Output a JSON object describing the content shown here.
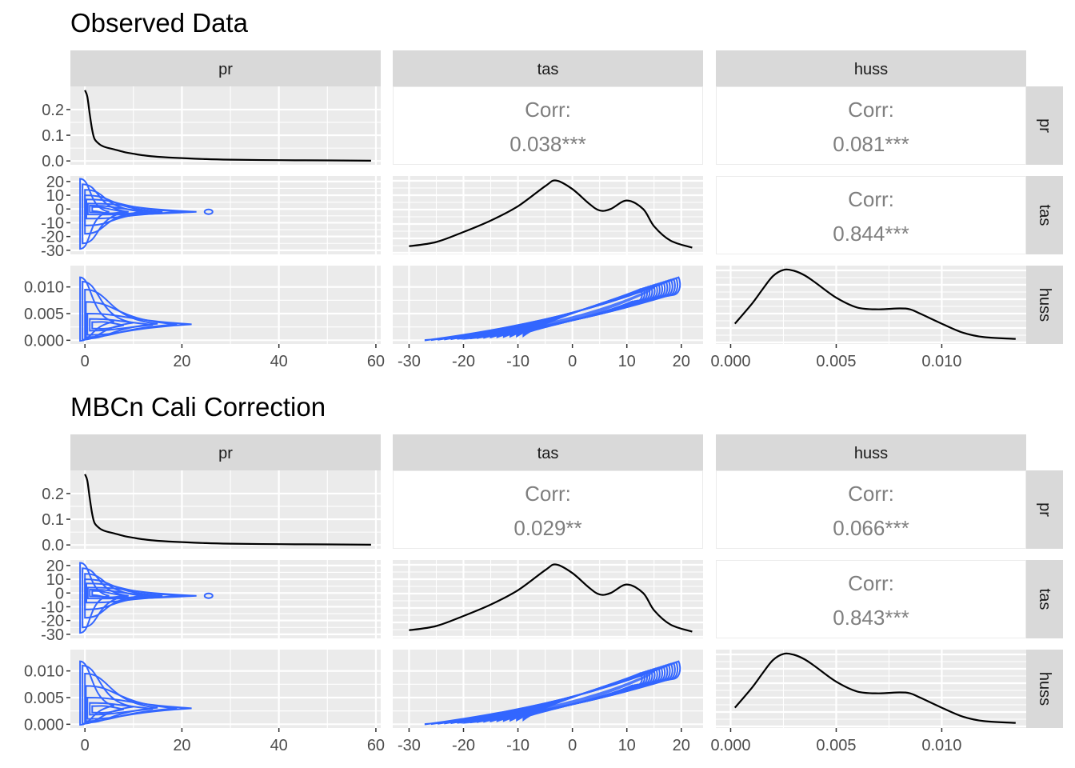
{
  "chart_data": [
    {
      "type": "scatterplot-matrix",
      "title": "Observed Data",
      "variables": [
        "pr",
        "tas",
        "huss"
      ],
      "correlations": {
        "tas_pr": {
          "label": "Corr:",
          "value": "0.038***"
        },
        "huss_pr": {
          "label": "Corr:",
          "value": "0.081***"
        },
        "huss_tas": {
          "label": "Corr:",
          "value": "0.844***"
        }
      },
      "axes": {
        "pr": {
          "range": [
            -3,
            61
          ],
          "ticks": [
            0,
            20,
            40,
            60
          ],
          "tick_labels": [
            "0",
            "20",
            "40",
            "60"
          ]
        },
        "tas": {
          "range": [
            -33,
            24
          ],
          "ticks": [
            -30,
            -20,
            -10,
            0,
            10,
            20
          ],
          "tick_labels": [
            "-30",
            "-20",
            "-10",
            "0",
            "10",
            "20"
          ],
          "row_ticks": [
            20,
            10,
            0,
            -10,
            -20,
            -30
          ],
          "row_tick_labels": [
            "20",
            "10",
            "0",
            "-10",
            "-20",
            "-30"
          ]
        },
        "huss": {
          "range": [
            -0.0007,
            0.014
          ],
          "ticks": [
            0,
            0.005,
            0.01
          ],
          "tick_labels": [
            "0.000",
            "0.005",
            "0.010"
          ]
        },
        "pr_density": {
          "range": [
            -0.015,
            0.29
          ],
          "ticks": [
            0,
            0.1,
            0.2
          ],
          "tick_labels": [
            "0.0",
            "0.1",
            "0.2"
          ]
        }
      },
      "density_pr": {
        "x": [
          0,
          0.5,
          1,
          1.5,
          2,
          3,
          4,
          6,
          8,
          10,
          12,
          15,
          20,
          25,
          30,
          40,
          50,
          59
        ],
        "y": [
          0.275,
          0.25,
          0.18,
          0.12,
          0.085,
          0.065,
          0.055,
          0.045,
          0.035,
          0.028,
          0.022,
          0.016,
          0.011,
          0.007,
          0.005,
          0.003,
          0.002,
          0.001
        ]
      },
      "density_tas": {
        "x": [
          -30,
          -25,
          -20,
          -15,
          -10,
          -5,
          -3,
          0,
          3,
          5,
          7,
          10,
          13,
          15,
          18,
          22
        ],
        "y": [
          0.004,
          0.007,
          0.014,
          0.022,
          0.032,
          0.046,
          0.05,
          0.044,
          0.034,
          0.029,
          0.03,
          0.036,
          0.03,
          0.018,
          0.008,
          0.003
        ]
      },
      "density_huss": {
        "x": [
          0.0002,
          0.001,
          0.0015,
          0.002,
          0.0025,
          0.003,
          0.0035,
          0.004,
          0.005,
          0.006,
          0.007,
          0.008,
          0.0085,
          0.009,
          0.01,
          0.011,
          0.012,
          0.0135
        ],
        "y": [
          0.2,
          0.42,
          0.58,
          0.73,
          0.8,
          0.79,
          0.74,
          0.66,
          0.49,
          0.38,
          0.36,
          0.37,
          0.36,
          0.31,
          0.2,
          0.1,
          0.05,
          0.03
        ]
      }
    },
    {
      "type": "scatterplot-matrix",
      "title": "MBCn Cali Correction",
      "variables": [
        "pr",
        "tas",
        "huss"
      ],
      "correlations": {
        "tas_pr": {
          "label": "Corr:",
          "value": "0.029**"
        },
        "huss_pr": {
          "label": "Corr:",
          "value": "0.066***"
        },
        "huss_tas": {
          "label": "Corr:",
          "value": "0.843***"
        }
      },
      "axes": {
        "pr": {
          "range": [
            -3,
            61
          ],
          "ticks": [
            0,
            20,
            40,
            60
          ],
          "tick_labels": [
            "0",
            "20",
            "40",
            "60"
          ]
        },
        "tas": {
          "range": [
            -33,
            24
          ],
          "ticks": [
            -30,
            -20,
            -10,
            0,
            10,
            20
          ],
          "tick_labels": [
            "-30",
            "-20",
            "-10",
            "0",
            "10",
            "20"
          ],
          "row_ticks": [
            20,
            10,
            0,
            -10,
            -20,
            -30
          ],
          "row_tick_labels": [
            "20",
            "10",
            "0",
            "-10",
            "-20",
            "-30"
          ]
        },
        "huss": {
          "range": [
            -0.0007,
            0.014
          ],
          "ticks": [
            0,
            0.005,
            0.01
          ],
          "tick_labels": [
            "0.000",
            "0.005",
            "0.010"
          ]
        },
        "pr_density": {
          "range": [
            -0.015,
            0.29
          ],
          "ticks": [
            0,
            0.1,
            0.2
          ],
          "tick_labels": [
            "0.0",
            "0.1",
            "0.2"
          ]
        }
      },
      "density_pr": {
        "x": [
          0,
          0.5,
          1,
          1.5,
          2,
          3,
          4,
          6,
          8,
          10,
          12,
          15,
          20,
          25,
          30,
          40,
          50,
          59
        ],
        "y": [
          0.275,
          0.25,
          0.18,
          0.12,
          0.085,
          0.065,
          0.055,
          0.045,
          0.035,
          0.028,
          0.022,
          0.016,
          0.011,
          0.007,
          0.005,
          0.003,
          0.002,
          0.001
        ]
      },
      "density_tas": {
        "x": [
          -30,
          -25,
          -20,
          -15,
          -10,
          -5,
          -3,
          0,
          3,
          5,
          7,
          10,
          13,
          15,
          18,
          22
        ],
        "y": [
          0.004,
          0.007,
          0.014,
          0.022,
          0.032,
          0.046,
          0.05,
          0.044,
          0.034,
          0.029,
          0.03,
          0.036,
          0.03,
          0.018,
          0.008,
          0.003
        ]
      },
      "density_huss": {
        "x": [
          0.0002,
          0.001,
          0.0015,
          0.002,
          0.0025,
          0.003,
          0.0035,
          0.004,
          0.005,
          0.006,
          0.007,
          0.008,
          0.0085,
          0.009,
          0.01,
          0.011,
          0.012,
          0.0135
        ],
        "y": [
          0.2,
          0.42,
          0.58,
          0.73,
          0.8,
          0.79,
          0.74,
          0.66,
          0.49,
          0.38,
          0.36,
          0.37,
          0.36,
          0.31,
          0.2,
          0.1,
          0.05,
          0.03
        ]
      }
    }
  ],
  "colors": {
    "contour": "#3366ff",
    "density": "#000000",
    "panel_bg": "#ebebeb",
    "strip_bg": "#d9d9d9",
    "corr_text": "#7f7f7f"
  }
}
